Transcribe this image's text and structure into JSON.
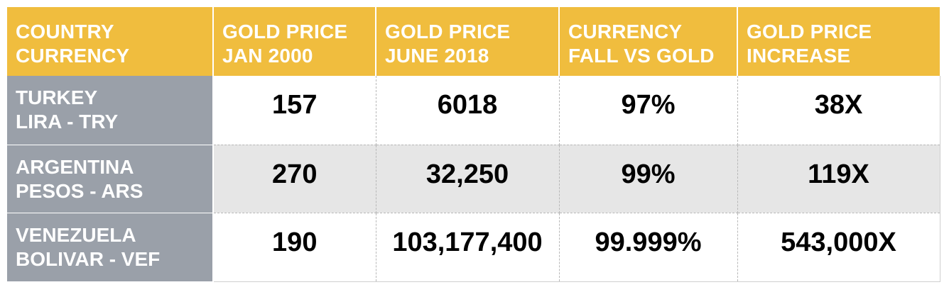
{
  "chart_data": {
    "type": "table",
    "headers": [
      [
        "COUNTRY",
        "CURRENCY"
      ],
      [
        "GOLD PRICE",
        "JAN 2000"
      ],
      [
        "GOLD PRICE",
        "JUNE 2018"
      ],
      [
        "CURRENCY",
        "FALL VS GOLD"
      ],
      [
        "GOLD PRICE",
        "INCREASE"
      ]
    ],
    "rows": [
      {
        "label": [
          "TURKEY",
          "LIRA - TRY"
        ],
        "values": [
          "157",
          "6018",
          "97%",
          "38X"
        ]
      },
      {
        "label": [
          "ARGENTINA",
          "PESOS - ARS"
        ],
        "values": [
          "270",
          "32,250",
          "99%",
          "119X"
        ]
      },
      {
        "label": [
          "VENEZUELA",
          "BOLIVAR - VEF"
        ],
        "values": [
          "190",
          "103,177,400",
          "99.999%",
          "543,000X"
        ]
      }
    ]
  },
  "colors": {
    "header_bg": "#f0bd3e",
    "row_label_bg": "#9aa0a9",
    "alt_row_bg": "#e6e6e6",
    "text_light": "#ffffff",
    "text_dark": "#000000"
  }
}
